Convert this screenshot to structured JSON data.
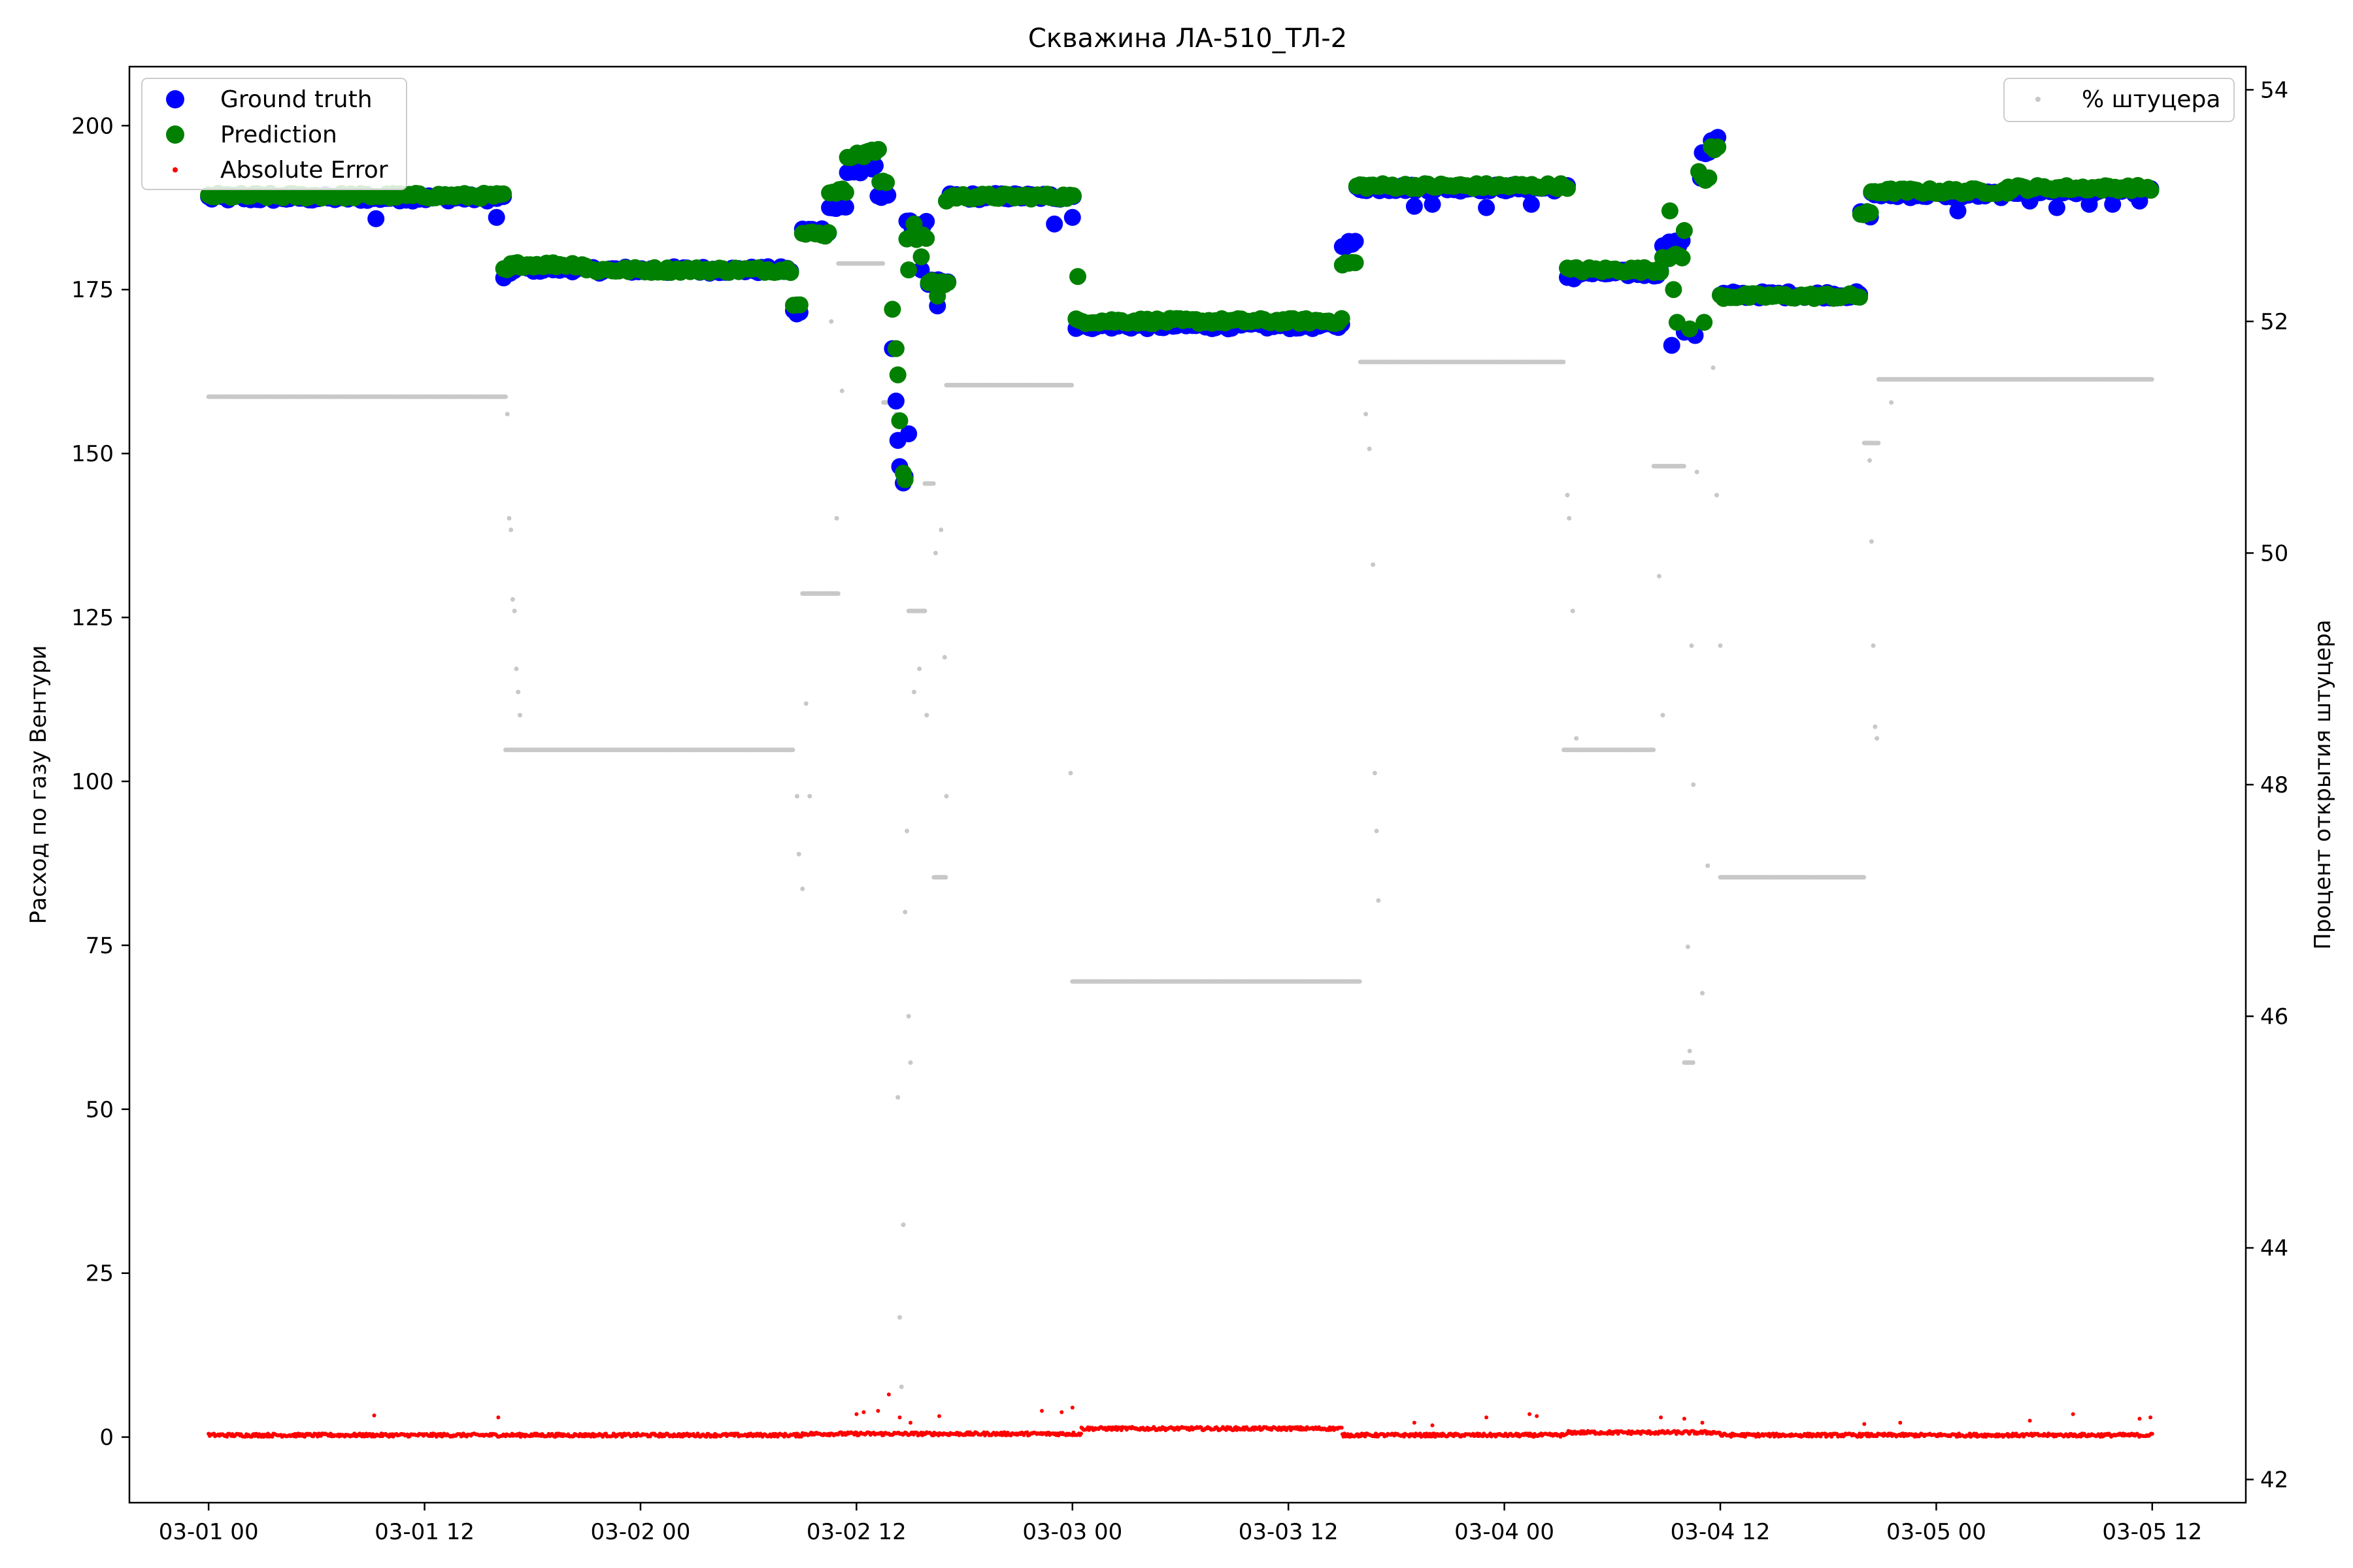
{
  "chart_data": {
    "type": "scatter",
    "title": "Скважина ЛА-510_ТЛ-2",
    "ylabel": "Расход по газу Вентури",
    "y2label": "Процент открытия штуцера",
    "ylim": [
      -10,
      209
    ],
    "y2lim": [
      41.8,
      54.2
    ],
    "x_range": [
      "2024-03-01 00:00",
      "2024-03-05 14:30"
    ],
    "x_ticks": [
      {
        "t": 0,
        "label": "03-01 00"
      },
      {
        "t": 12,
        "label": "03-01 12"
      },
      {
        "t": 24,
        "label": "03-02 00"
      },
      {
        "t": 36,
        "label": "03-02 12"
      },
      {
        "t": 48,
        "label": "03-03 00"
      },
      {
        "t": 60,
        "label": "03-03 12"
      },
      {
        "t": 72,
        "label": "03-04 00"
      },
      {
        "t": 84,
        "label": "03-04 12"
      },
      {
        "t": 96,
        "label": "03-05 00"
      },
      {
        "t": 108,
        "label": "03-05 12"
      }
    ],
    "y_ticks": [
      0,
      25,
      50,
      75,
      100,
      125,
      150,
      175,
      200
    ],
    "y2_ticks": [
      42,
      44,
      46,
      48,
      50,
      52,
      54
    ],
    "legend_left": {
      "position": "upper-left",
      "entries": [
        "Ground truth",
        "Prediction",
        "Absolute Error"
      ]
    },
    "legend_right": {
      "position": "upper-right",
      "entries": [
        "% штуцера"
      ]
    },
    "colors": {
      "ground_truth": "#0000ff",
      "prediction": "#008000",
      "abs_error": "#ff0000",
      "choke": "#c8c8c8"
    },
    "series": [
      {
        "name": "Ground truth",
        "axis": "left",
        "segments": [
          [
            0,
            16.4,
            189.0
          ],
          [
            16.4,
            16.8,
            177.0
          ],
          [
            16.8,
            21.0,
            178.2
          ],
          [
            21.0,
            32.5,
            178.0
          ],
          [
            32.5,
            33.0,
            171.5
          ],
          [
            33.0,
            34.5,
            184.0
          ],
          [
            34.5,
            35.5,
            187.5
          ],
          [
            35.5,
            36.5,
            193.0
          ],
          [
            36.5,
            37.2,
            193.5
          ],
          [
            37.2,
            37.8,
            189.5
          ],
          [
            38.8,
            40.0,
            185.0
          ],
          [
            40.0,
            41.2,
            176.0
          ],
          [
            41.2,
            48.2,
            189.2
          ],
          [
            48.2,
            63.0,
            169.5
          ],
          [
            63.0,
            63.8,
            182.0
          ],
          [
            63.8,
            75.5,
            190.5
          ],
          [
            75.5,
            76.0,
            177.0
          ],
          [
            76.0,
            80.8,
            177.5
          ],
          [
            80.8,
            82.0,
            182.0
          ],
          [
            83.0,
            83.5,
            196.0
          ],
          [
            83.5,
            84.0,
            198.0
          ],
          [
            84.0,
            91.8,
            174.2
          ],
          [
            91.8,
            92.4,
            186.5
          ],
          [
            92.4,
            100.0,
            189.5
          ],
          [
            100.0,
            108.0,
            190.0
          ]
        ],
        "points": [
          {
            "t": 9.3,
            "v": 185.8
          },
          {
            "t": 16.0,
            "v": 186.0
          },
          {
            "t": 38.0,
            "v": 166.0
          },
          {
            "t": 38.2,
            "v": 158.0
          },
          {
            "t": 38.3,
            "v": 152.0
          },
          {
            "t": 38.4,
            "v": 148.0
          },
          {
            "t": 38.6,
            "v": 145.5
          },
          {
            "t": 38.7,
            "v": 146.5
          },
          {
            "t": 38.9,
            "v": 153.0
          },
          {
            "t": 39.1,
            "v": 184.0
          },
          {
            "t": 39.6,
            "v": 178.0
          },
          {
            "t": 40.5,
            "v": 172.5
          },
          {
            "t": 47.0,
            "v": 185.0
          },
          {
            "t": 48.0,
            "v": 186.0
          },
          {
            "t": 67.0,
            "v": 187.7
          },
          {
            "t": 68.0,
            "v": 188.0
          },
          {
            "t": 71.0,
            "v": 187.5
          },
          {
            "t": 73.5,
            "v": 188.0
          },
          {
            "t": 81.3,
            "v": 166.5
          },
          {
            "t": 82.0,
            "v": 168.5
          },
          {
            "t": 82.6,
            "v": 168.0
          },
          {
            "t": 82.9,
            "v": 192.0
          },
          {
            "t": 97.2,
            "v": 187.0
          },
          {
            "t": 101.2,
            "v": 188.5
          },
          {
            "t": 102.7,
            "v": 187.5
          },
          {
            "t": 104.5,
            "v": 188.0
          },
          {
            "t": 105.8,
            "v": 188.0
          },
          {
            "t": 107.3,
            "v": 188.5
          }
        ]
      },
      {
        "name": "Prediction",
        "axis": "left",
        "segments": [
          [
            0,
            16.4,
            189.3
          ],
          [
            16.4,
            16.8,
            178.0
          ],
          [
            16.8,
            21.0,
            178.8
          ],
          [
            21.0,
            32.5,
            178.0
          ],
          [
            32.5,
            33.0,
            173.0
          ],
          [
            33.0,
            34.5,
            183.5
          ],
          [
            34.5,
            35.5,
            190.0
          ],
          [
            35.5,
            36.5,
            195.5
          ],
          [
            36.5,
            37.3,
            196.0
          ],
          [
            37.3,
            37.8,
            191.5
          ],
          [
            38.8,
            40.0,
            183.0
          ],
          [
            40.0,
            41.2,
            176.0
          ],
          [
            41.2,
            48.2,
            189.2
          ],
          [
            48.2,
            63.0,
            170.2
          ],
          [
            63.0,
            63.8,
            179.0
          ],
          [
            63.8,
            75.5,
            190.8
          ],
          [
            75.5,
            76.0,
            178.0
          ],
          [
            76.0,
            80.8,
            178.0
          ],
          [
            80.8,
            82.0,
            180.0
          ],
          [
            83.0,
            83.5,
            192.0
          ],
          [
            83.5,
            84.0,
            196.5
          ],
          [
            84.0,
            91.8,
            174.0
          ],
          [
            91.8,
            92.4,
            186.5
          ],
          [
            92.4,
            100.0,
            190.0
          ],
          [
            100.0,
            108.0,
            190.5
          ]
        ],
        "points": [
          {
            "t": 16.2,
            "v": 189.5
          },
          {
            "t": 38.0,
            "v": 172.0
          },
          {
            "t": 38.2,
            "v": 166.0
          },
          {
            "t": 38.3,
            "v": 162.0
          },
          {
            "t": 38.4,
            "v": 155.0
          },
          {
            "t": 38.6,
            "v": 147.0
          },
          {
            "t": 38.7,
            "v": 146.0
          },
          {
            "t": 38.9,
            "v": 178.0
          },
          {
            "t": 39.2,
            "v": 185.0
          },
          {
            "t": 39.6,
            "v": 180.0
          },
          {
            "t": 40.5,
            "v": 174.0
          },
          {
            "t": 41.0,
            "v": 188.5
          },
          {
            "t": 48.3,
            "v": 177.0
          },
          {
            "t": 81.2,
            "v": 187.0
          },
          {
            "t": 81.4,
            "v": 175.0
          },
          {
            "t": 81.6,
            "v": 170.0
          },
          {
            "t": 82.0,
            "v": 184.0
          },
          {
            "t": 82.3,
            "v": 169.0
          },
          {
            "t": 82.8,
            "v": 193.0
          },
          {
            "t": 83.1,
            "v": 170.0
          }
        ]
      },
      {
        "name": "Absolute Error",
        "axis": "left",
        "segments": [
          [
            0,
            33.0,
            0.3
          ],
          [
            33.0,
            48.5,
            0.5
          ],
          [
            48.5,
            63.0,
            1.3
          ],
          [
            63.0,
            75.5,
            0.3
          ],
          [
            75.5,
            84.0,
            0.7
          ],
          [
            84.0,
            108.0,
            0.3
          ]
        ],
        "points": [
          {
            "t": 9.2,
            "v": 3.3
          },
          {
            "t": 16.1,
            "v": 3.0
          },
          {
            "t": 36.0,
            "v": 3.5
          },
          {
            "t": 36.4,
            "v": 3.8
          },
          {
            "t": 37.2,
            "v": 4.0
          },
          {
            "t": 37.8,
            "v": 6.5
          },
          {
            "t": 38.4,
            "v": 3.0
          },
          {
            "t": 39.0,
            "v": 2.2
          },
          {
            "t": 40.6,
            "v": 3.2
          },
          {
            "t": 46.3,
            "v": 4.0
          },
          {
            "t": 47.4,
            "v": 3.8
          },
          {
            "t": 48.0,
            "v": 4.5
          },
          {
            "t": 67.0,
            "v": 2.2
          },
          {
            "t": 68.0,
            "v": 1.8
          },
          {
            "t": 71.0,
            "v": 3.0
          },
          {
            "t": 73.4,
            "v": 3.5
          },
          {
            "t": 73.8,
            "v": 3.2
          },
          {
            "t": 80.7,
            "v": 3.0
          },
          {
            "t": 82.0,
            "v": 2.8
          },
          {
            "t": 83.0,
            "v": 2.2
          },
          {
            "t": 92.0,
            "v": 2.0
          },
          {
            "t": 94.0,
            "v": 2.2
          },
          {
            "t": 101.2,
            "v": 2.5
          },
          {
            "t": 103.6,
            "v": 3.5
          },
          {
            "t": 107.3,
            "v": 2.8
          },
          {
            "t": 107.9,
            "v": 3.0
          }
        ]
      },
      {
        "name": "% штуцера",
        "axis": "right",
        "segments": [
          [
            0,
            16.5,
            51.35
          ],
          [
            16.5,
            32.5,
            48.3
          ],
          [
            33.0,
            35.0,
            49.65
          ],
          [
            35.0,
            37.5,
            52.5
          ],
          [
            37.5,
            38.3,
            51.3
          ],
          [
            38.9,
            39.8,
            49.5
          ],
          [
            39.8,
            40.3,
            50.6
          ],
          [
            40.3,
            41.0,
            47.2
          ],
          [
            41.0,
            48.0,
            51.45
          ],
          [
            48.0,
            64.0,
            46.3
          ],
          [
            64.0,
            75.3,
            51.65
          ],
          [
            75.3,
            80.3,
            48.3
          ],
          [
            80.3,
            82.0,
            50.75
          ],
          [
            82.0,
            82.5,
            45.6
          ],
          [
            84.0,
            92.0,
            47.2
          ],
          [
            92.0,
            92.8,
            50.95
          ],
          [
            92.8,
            108.0,
            51.5
          ]
        ],
        "points": [
          {
            "t": 16.6,
            "v": 51.2
          },
          {
            "t": 16.7,
            "v": 50.3
          },
          {
            "t": 16.8,
            "v": 50.2
          },
          {
            "t": 16.9,
            "v": 49.6
          },
          {
            "t": 17.0,
            "v": 49.5
          },
          {
            "t": 17.1,
            "v": 49.0
          },
          {
            "t": 17.2,
            "v": 48.8
          },
          {
            "t": 17.3,
            "v": 48.6
          },
          {
            "t": 32.7,
            "v": 47.9
          },
          {
            "t": 32.8,
            "v": 47.4
          },
          {
            "t": 33.0,
            "v": 47.1
          },
          {
            "t": 33.2,
            "v": 48.7
          },
          {
            "t": 33.4,
            "v": 47.9
          },
          {
            "t": 34.6,
            "v": 52.0
          },
          {
            "t": 34.9,
            "v": 50.3
          },
          {
            "t": 35.2,
            "v": 51.4
          },
          {
            "t": 38.2,
            "v": 51.2
          },
          {
            "t": 38.3,
            "v": 45.3
          },
          {
            "t": 38.4,
            "v": 43.4
          },
          {
            "t": 38.5,
            "v": 42.8
          },
          {
            "t": 38.6,
            "v": 44.2
          },
          {
            "t": 38.7,
            "v": 46.9
          },
          {
            "t": 38.8,
            "v": 47.6
          },
          {
            "t": 38.9,
            "v": 46.0
          },
          {
            "t": 39.0,
            "v": 45.6
          },
          {
            "t": 39.2,
            "v": 48.8
          },
          {
            "t": 39.5,
            "v": 49.0
          },
          {
            "t": 39.9,
            "v": 48.6
          },
          {
            "t": 40.4,
            "v": 50.0
          },
          {
            "t": 40.7,
            "v": 50.2
          },
          {
            "t": 40.9,
            "v": 49.1
          },
          {
            "t": 41.0,
            "v": 47.9
          },
          {
            "t": 47.9,
            "v": 48.1
          },
          {
            "t": 64.3,
            "v": 51.2
          },
          {
            "t": 64.5,
            "v": 50.9
          },
          {
            "t": 64.7,
            "v": 49.9
          },
          {
            "t": 64.8,
            "v": 48.1
          },
          {
            "t": 64.9,
            "v": 47.6
          },
          {
            "t": 65.0,
            "v": 47.0
          },
          {
            "t": 75.5,
            "v": 50.5
          },
          {
            "t": 75.6,
            "v": 50.3
          },
          {
            "t": 75.8,
            "v": 49.5
          },
          {
            "t": 76.0,
            "v": 48.4
          },
          {
            "t": 80.6,
            "v": 49.8
          },
          {
            "t": 80.8,
            "v": 48.6
          },
          {
            "t": 82.2,
            "v": 46.6
          },
          {
            "t": 82.3,
            "v": 45.7
          },
          {
            "t": 82.4,
            "v": 49.2
          },
          {
            "t": 82.5,
            "v": 48.0
          },
          {
            "t": 82.7,
            "v": 50.7
          },
          {
            "t": 83.0,
            "v": 46.2
          },
          {
            "t": 83.3,
            "v": 47.3
          },
          {
            "t": 83.6,
            "v": 51.6
          },
          {
            "t": 83.8,
            "v": 50.5
          },
          {
            "t": 84.0,
            "v": 49.2
          },
          {
            "t": 92.3,
            "v": 50.8
          },
          {
            "t": 92.4,
            "v": 50.1
          },
          {
            "t": 92.5,
            "v": 49.2
          },
          {
            "t": 92.6,
            "v": 48.5
          },
          {
            "t": 92.7,
            "v": 48.4
          },
          {
            "t": 93.5,
            "v": 51.3
          }
        ]
      }
    ]
  }
}
